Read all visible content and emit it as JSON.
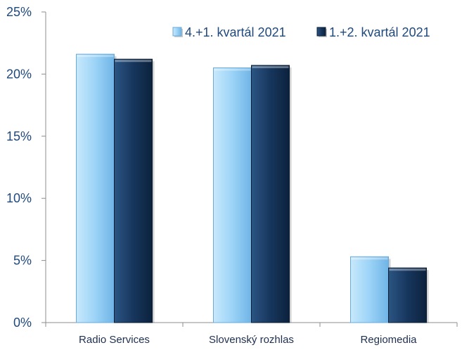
{
  "chart_data": {
    "type": "bar",
    "categories": [
      "Radio Services",
      "Slovenský rozhlas",
      "Regiomedia"
    ],
    "series": [
      {
        "name": "4.+1. kvartál 2021",
        "values": [
          21.6,
          20.5,
          5.3
        ],
        "color": "#9cd3f7"
      },
      {
        "name": "1.+2. kvartál 2021",
        "values": [
          21.2,
          20.7,
          4.4
        ],
        "color": "#17365d"
      }
    ],
    "ylim": [
      0,
      25
    ],
    "yticks": [
      0,
      5,
      10,
      15,
      20,
      25
    ],
    "ytick_labels": [
      "0%",
      "5%",
      "10%",
      "15%",
      "20%",
      "25%"
    ],
    "legend_position": "top-right",
    "grid": false
  }
}
